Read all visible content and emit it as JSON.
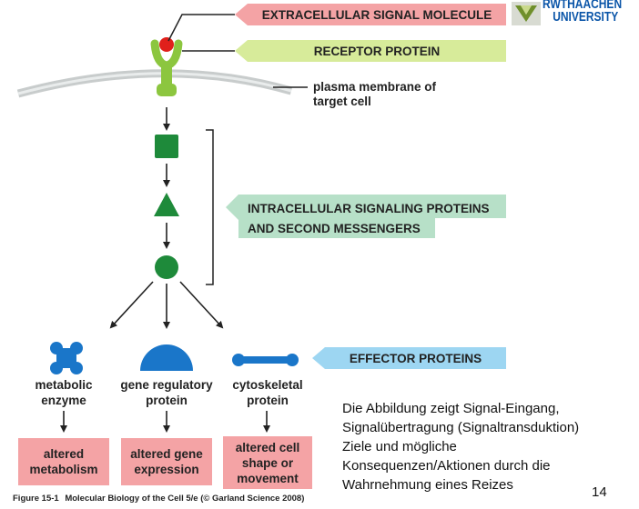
{
  "labels": {
    "extracellular": "EXTRACELLULAR SIGNAL MOLECULE",
    "receptor": "RECEPTOR PROTEIN",
    "membrane_line1": "plasma membrane of",
    "membrane_line2": "target cell",
    "intracellular_line1": "INTRACELLULAR SIGNALING PROTEINS",
    "intracellular_line2": "AND SECOND MESSENGERS",
    "effector": "EFFECTOR PROTEINS"
  },
  "logo": {
    "line1": "RWTHAACHEN",
    "line2": "UNIVERSITY"
  },
  "effectors": [
    {
      "line1": "metabolic",
      "line2": "enzyme"
    },
    {
      "line1": "gene regulatory",
      "line2": "protein"
    },
    {
      "line1": "cytoskeletal",
      "line2": "protein"
    }
  ],
  "outcomes": [
    {
      "line1": "altered",
      "line2": "metabolism",
      "line3": ""
    },
    {
      "line1": "altered gene",
      "line2": "expression",
      "line3": ""
    },
    {
      "line1": "altered cell",
      "line2": "shape or",
      "line3": "movement"
    }
  ],
  "note": {
    "line1": "Die Abbildung zeigt Signal-Eingang,",
    "line2": "Signalübertragung (Signaltransduktion)",
    "line3": "Ziele und mögliche",
    "line4": "Konsequenzen/Aktionen durch die",
    "line5": "Wahrnehmung eines Reizes"
  },
  "page_number": "14",
  "figure_caption": {
    "label": "Figure 15-1",
    "source": "Molecular Biology of the Cell 5/e (© Garland Science 2008)"
  },
  "colors": {
    "protein_green": "#1e8a3a",
    "receptor_green": "#8cc63f",
    "signal_red": "#e0201b",
    "effector_blue": "#1a76c9",
    "membrane_gray": "#c8cccc"
  }
}
